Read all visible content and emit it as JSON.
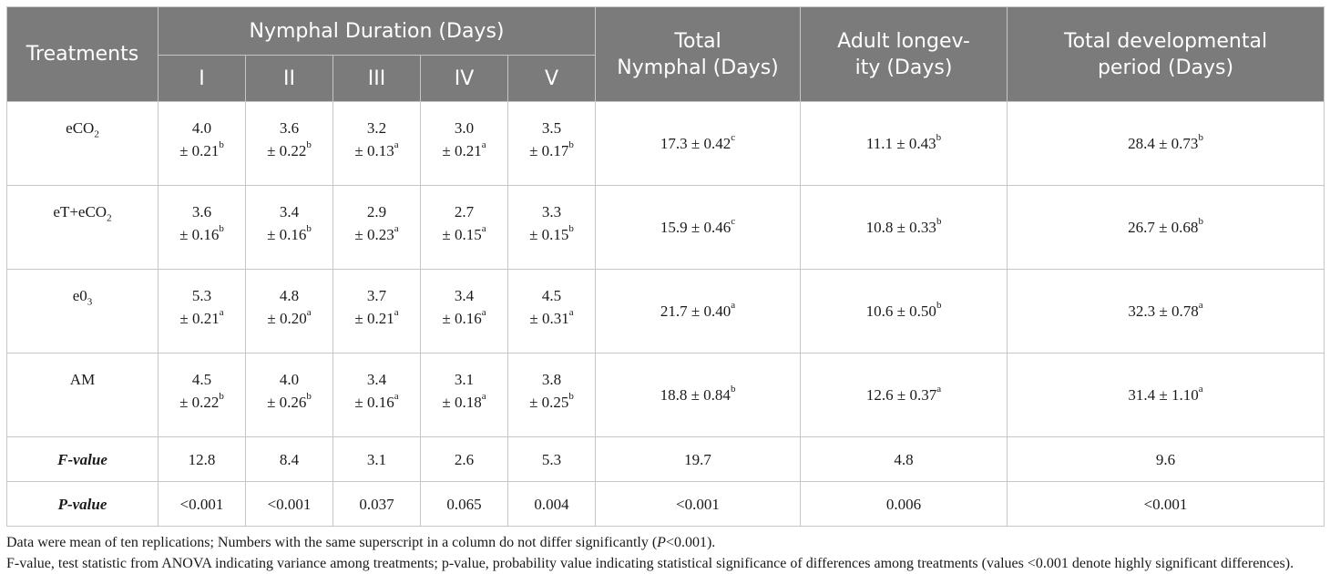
{
  "header": {
    "treatments": "Treatments",
    "nymphal_duration": "Nymphal Duration (Days)",
    "instars": [
      "I",
      "II",
      "III",
      "IV",
      "V"
    ],
    "total_nymphal_line1": "Total",
    "total_nymphal_line2": "Nymphal (Days)",
    "adult_longevity_line1": "Adult longev-",
    "adult_longevity_line2": "ity (Days)",
    "total_dev_line1": "Total developmental",
    "total_dev_line2": "period (Days)"
  },
  "rows": [
    {
      "treatment": {
        "pre": "eCO",
        "sub": "2"
      },
      "instars": [
        {
          "mean": "4.0",
          "se": "± 0.21",
          "sup": "b"
        },
        {
          "mean": "3.6",
          "se": "± 0.22",
          "sup": "b"
        },
        {
          "mean": "3.2",
          "se": "± 0.13",
          "sup": "a"
        },
        {
          "mean": "3.0",
          "se": "± 0.21",
          "sup": "a"
        },
        {
          "mean": "3.5",
          "se": "± 0.17",
          "sup": "b"
        }
      ],
      "total_nymphal": {
        "val": "17.3 ± 0.42",
        "sup": "c"
      },
      "adult_longevity": {
        "val": "11.1 ± 0.43",
        "sup": "b"
      },
      "total_dev": {
        "val": "28.4 ± 0.73",
        "sup": "b"
      }
    },
    {
      "treatment": {
        "pre": "eT+eCO",
        "sub": "2"
      },
      "instars": [
        {
          "mean": "3.6",
          "se": "± 0.16",
          "sup": "b"
        },
        {
          "mean": "3.4",
          "se": "± 0.16",
          "sup": "b"
        },
        {
          "mean": "2.9",
          "se": "± 0.23",
          "sup": "a"
        },
        {
          "mean": "2.7",
          "se": "± 0.15",
          "sup": "a"
        },
        {
          "mean": "3.3",
          "se": "± 0.15",
          "sup": "b"
        }
      ],
      "total_nymphal": {
        "val": "15.9 ± 0.46",
        "sup": "c"
      },
      "adult_longevity": {
        "val": "10.8 ± 0.33",
        "sup": "b"
      },
      "total_dev": {
        "val": "26.7 ± 0.68",
        "sup": "b"
      }
    },
    {
      "treatment": {
        "pre": "e0",
        "sub": "3"
      },
      "instars": [
        {
          "mean": "5.3",
          "se": "± 0.21",
          "sup": "a"
        },
        {
          "mean": "4.8",
          "se": "± 0.20",
          "sup": "a"
        },
        {
          "mean": "3.7",
          "se": "± 0.21",
          "sup": "a"
        },
        {
          "mean": "3.4",
          "se": "± 0.16",
          "sup": "a"
        },
        {
          "mean": "4.5",
          "se": "± 0.31",
          "sup": "a"
        }
      ],
      "total_nymphal": {
        "val": "21.7 ± 0.40",
        "sup": "a"
      },
      "adult_longevity": {
        "val": "10.6 ± 0.50",
        "sup": "b"
      },
      "total_dev": {
        "val": "32.3 ± 0.78",
        "sup": "a"
      }
    },
    {
      "treatment": {
        "pre": "AM",
        "sub": ""
      },
      "instars": [
        {
          "mean": "4.5",
          "se": "± 0.22",
          "sup": "b"
        },
        {
          "mean": "4.0",
          "se": "± 0.26",
          "sup": "b"
        },
        {
          "mean": "3.4",
          "se": "± 0.16",
          "sup": "a"
        },
        {
          "mean": "3.1",
          "se": "± 0.18",
          "sup": "a"
        },
        {
          "mean": "3.8",
          "se": "± 0.25",
          "sup": "b"
        }
      ],
      "total_nymphal": {
        "val": "18.8 ± 0.84",
        "sup": "b"
      },
      "adult_longevity": {
        "val": "12.6 ± 0.37",
        "sup": "a"
      },
      "total_dev": {
        "val": "31.4 ± 1.10",
        "sup": "a"
      }
    }
  ],
  "fvalue": {
    "label": "F-value",
    "values": [
      "12.8",
      "8.4",
      "3.1",
      "2.6",
      "5.3",
      "19.7",
      "4.8",
      "9.6"
    ]
  },
  "pvalue": {
    "label": "P-value",
    "values": [
      "<0.001",
      "<0.001",
      "0.037",
      "0.065",
      "0.004",
      "<0.001",
      "0.006",
      "<0.001"
    ]
  },
  "notes": {
    "line1_pre": "Data were mean of ten replications; Numbers with the same superscript in a column do not differ significantly (",
    "line1_p": "P",
    "line1_post": "<0.001).",
    "line2": "F-value, test statistic from ANOVA indicating variance among treatments; p-value, probability value indicating statistical significance of differences among treatments (values <0.001 denote highly significant differences)."
  },
  "colors": {
    "header_bg": "#7b7b7b",
    "header_text": "#ffffff",
    "border": "#c6c6c6"
  }
}
